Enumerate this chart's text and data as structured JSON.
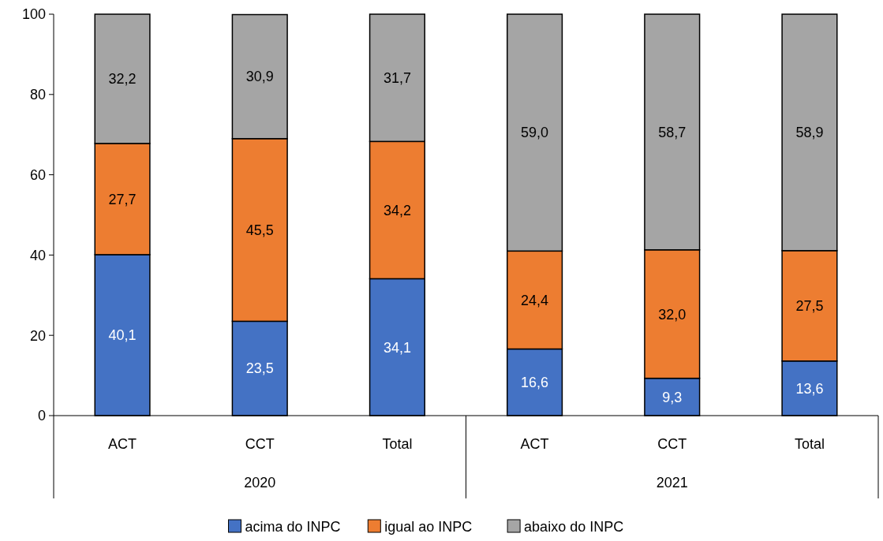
{
  "chart_data": {
    "type": "bar",
    "stacked": true,
    "categories": [
      "ACT",
      "CCT",
      "Total",
      "ACT",
      "CCT",
      "Total"
    ],
    "ylim": [
      0,
      100
    ],
    "yticks": [
      0,
      20,
      40,
      60,
      80,
      100
    ],
    "grid": false,
    "legend": "bottom",
    "annotations": [
      "2020",
      "2021"
    ],
    "series": [
      {
        "name": "acima do INPC",
        "color": "#4472c4",
        "values": [
          40.1,
          23.5,
          34.1,
          16.6,
          9.3,
          13.6
        ],
        "value_labels": [
          "40,1",
          "23,5",
          "34,1",
          "16,6",
          "9,3",
          "13,6"
        ]
      },
      {
        "name": "igual ao INPC",
        "color": "#ed7d31",
        "values": [
          27.7,
          45.5,
          34.2,
          24.4,
          32.0,
          27.5
        ],
        "value_labels": [
          "27,7",
          "45,5",
          "34,2",
          "24,4",
          "32,0",
          "27,5"
        ]
      },
      {
        "name": "abaixo do INPC",
        "color": "#a5a5a5",
        "values": [
          32.2,
          30.9,
          31.7,
          59.0,
          58.7,
          58.9
        ],
        "value_labels": [
          "32,2",
          "30,9",
          "31,7",
          "59,0",
          "58,7",
          "58,9"
        ]
      }
    ]
  }
}
